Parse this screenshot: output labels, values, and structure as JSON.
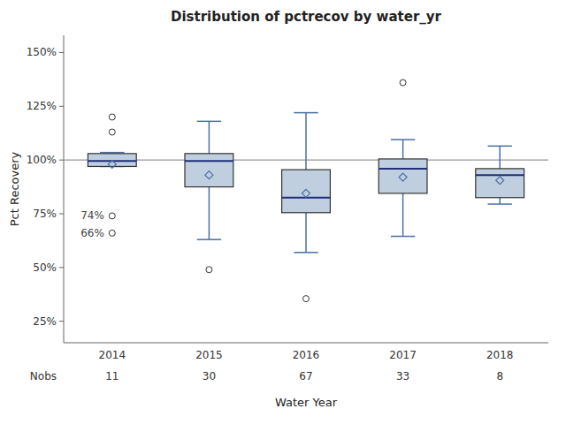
{
  "chart_data": {
    "type": "box",
    "title": "Distribution of pctrecov by water_yr",
    "x_label": "Water Year",
    "y_label": "Pct Recovery",
    "categories": [
      "2014",
      "2015",
      "2016",
      "2017",
      "2018"
    ],
    "boxes": [
      {
        "q1": 97.0,
        "median": 99.5,
        "q3": 103.0,
        "whislo": 97.0,
        "whishi": 103.5,
        "mean": 98.0,
        "fliers": [
          120.0,
          113.0,
          74.0,
          66.0
        ],
        "annotations": [
          {
            "value": 74.0,
            "label": "74%"
          },
          {
            "value": 66.0,
            "label": "66%"
          }
        ]
      },
      {
        "q1": 87.5,
        "median": 99.5,
        "q3": 103.0,
        "whislo": 63.0,
        "whishi": 118.0,
        "mean": 93.0,
        "fliers": [
          49.0
        ]
      },
      {
        "q1": 75.5,
        "median": 82.5,
        "q3": 95.5,
        "whislo": 57.0,
        "whishi": 122.0,
        "mean": 84.5,
        "fliers": [
          35.5
        ]
      },
      {
        "q1": 84.5,
        "median": 96.0,
        "q3": 100.5,
        "whislo": 64.5,
        "whishi": 109.5,
        "mean": 92.0,
        "fliers": [
          136.0
        ]
      },
      {
        "q1": 82.5,
        "median": 93.0,
        "q3": 96.0,
        "whislo": 79.5,
        "whishi": 106.5,
        "mean": 90.5,
        "fliers": []
      }
    ],
    "nobs": {
      "label": "Nobs",
      "values": [
        11,
        30,
        67,
        33,
        8
      ]
    },
    "reference_line": {
      "value": 100.0,
      "color": "#999999"
    },
    "color": "#bfcfdf",
    "ylim": [
      15.0,
      158.0
    ],
    "yticks": [
      {
        "value": 25.0,
        "label": "25%"
      },
      {
        "value": 50.0,
        "label": "50%"
      },
      {
        "value": 75.0,
        "label": "75%"
      },
      {
        "value": 100.0,
        "label": "100%"
      },
      {
        "value": 125.0,
        "label": "125%"
      },
      {
        "value": 150.0,
        "label": "150%"
      }
    ],
    "grid": false
  }
}
